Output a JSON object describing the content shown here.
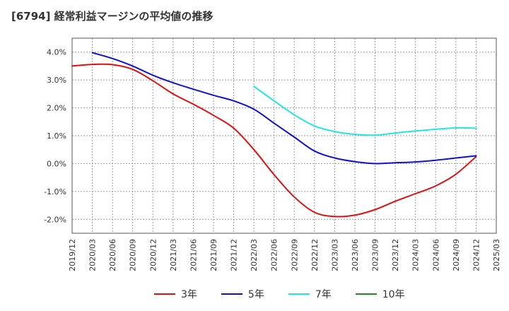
{
  "title": "[6794]  経常利益マージンの平均値の推移",
  "chart_data": {
    "type": "line",
    "ylim": [
      -2.5,
      4.5
    ],
    "yticks": [
      {
        "value": 4.0,
        "label": "4.0%"
      },
      {
        "value": 3.0,
        "label": "3.0%"
      },
      {
        "value": 2.0,
        "label": "2.0%"
      },
      {
        "value": 1.0,
        "label": "1.0%"
      },
      {
        "value": 0.0,
        "label": "0.0%"
      },
      {
        "value": -1.0,
        "label": "-1.0%"
      },
      {
        "value": -2.0,
        "label": "-2.0%"
      }
    ],
    "x_ticks": [
      "2019/12",
      "2020/03",
      "2020/06",
      "2020/09",
      "2020/12",
      "2021/03",
      "2021/06",
      "2021/09",
      "2021/12",
      "2022/03",
      "2022/06",
      "2022/09",
      "2022/12",
      "2023/03",
      "2023/06",
      "2023/09",
      "2023/12",
      "2024/03",
      "2024/06",
      "2024/09",
      "2024/12",
      "2025/03"
    ],
    "grid": true,
    "legend_position": "bottom",
    "series": [
      {
        "name": "3年",
        "color": "#dd1111",
        "points": [
          [
            "2019/12",
            3.5
          ],
          [
            "2020/03",
            3.56
          ],
          [
            "2020/06",
            3.55
          ],
          [
            "2020/09",
            3.38
          ],
          [
            "2020/12",
            2.97
          ],
          [
            "2021/03",
            2.5
          ],
          [
            "2021/06",
            2.13
          ],
          [
            "2021/09",
            1.73
          ],
          [
            "2021/12",
            1.27
          ],
          [
            "2022/03",
            0.5
          ],
          [
            "2022/06",
            -0.4
          ],
          [
            "2022/09",
            -1.2
          ],
          [
            "2022/12",
            -1.75
          ],
          [
            "2023/03",
            -1.9
          ],
          [
            "2023/06",
            -1.85
          ],
          [
            "2023/09",
            -1.65
          ],
          [
            "2023/12",
            -1.35
          ],
          [
            "2024/03",
            -1.08
          ],
          [
            "2024/06",
            -0.8
          ],
          [
            "2024/09",
            -0.38
          ],
          [
            "2024/12",
            0.25
          ]
        ]
      },
      {
        "name": "5年",
        "color": "#1111cc",
        "points": [
          [
            "2020/03",
            3.98
          ],
          [
            "2020/06",
            3.77
          ],
          [
            "2020/09",
            3.5
          ],
          [
            "2020/12",
            3.17
          ],
          [
            "2021/03",
            2.9
          ],
          [
            "2021/06",
            2.67
          ],
          [
            "2021/09",
            2.45
          ],
          [
            "2021/12",
            2.25
          ],
          [
            "2022/03",
            1.95
          ],
          [
            "2022/06",
            1.45
          ],
          [
            "2022/09",
            0.95
          ],
          [
            "2022/12",
            0.45
          ],
          [
            "2023/03",
            0.2
          ],
          [
            "2023/06",
            0.07
          ],
          [
            "2023/09",
            0.0
          ],
          [
            "2023/12",
            0.03
          ],
          [
            "2024/03",
            0.06
          ],
          [
            "2024/06",
            0.12
          ],
          [
            "2024/09",
            0.2
          ],
          [
            "2024/12",
            0.28
          ]
        ]
      },
      {
        "name": "7年",
        "color": "#22e5e5",
        "points": [
          [
            "2022/03",
            2.77
          ],
          [
            "2022/06",
            2.25
          ],
          [
            "2022/09",
            1.75
          ],
          [
            "2022/12",
            1.35
          ],
          [
            "2023/03",
            1.15
          ],
          [
            "2023/06",
            1.05
          ],
          [
            "2023/09",
            1.02
          ],
          [
            "2023/12",
            1.1
          ],
          [
            "2024/03",
            1.17
          ],
          [
            "2024/06",
            1.23
          ],
          [
            "2024/09",
            1.28
          ],
          [
            "2024/12",
            1.27
          ]
        ]
      },
      {
        "name": "10年",
        "color": "#228822",
        "points": []
      }
    ]
  }
}
